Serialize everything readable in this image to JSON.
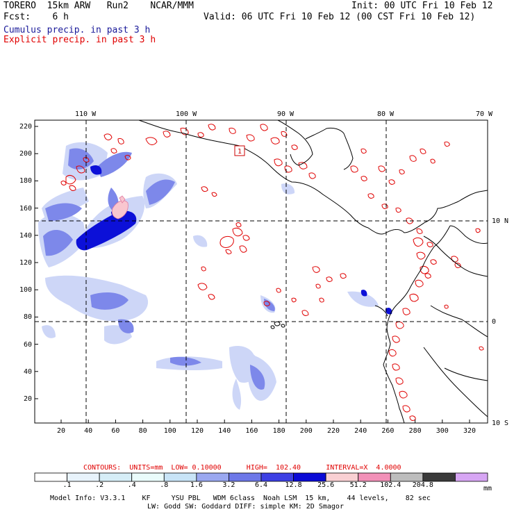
{
  "header": {
    "model": "TORERO  15km ARW   Run2    NCAR/MMM",
    "init": "Init: 00 UTC Fri 10 Feb 12",
    "fcst": "Fcst:    6 h",
    "valid": "Valid: 06 UTC Fri 10 Feb 12 (00 CST Fri 10 Feb 12)",
    "legend_cumulus": "Cumulus precip. in past 3 h",
    "legend_explicit": "Explicit precip. in past 3 h"
  },
  "map": {
    "top_lon_labels": [
      "110 W",
      "100 W",
      "90 W",
      "80 W",
      "70 W"
    ],
    "right_lat_labels": [
      "10 N",
      "0",
      "10 S"
    ],
    "y_grid_labels": [
      "220",
      "200",
      "180",
      "160",
      "140",
      "120",
      "100",
      "80",
      "60",
      "40",
      "20"
    ],
    "x_grid_labels": [
      "20",
      "40",
      "60",
      "80",
      "100",
      "120",
      "140",
      "160",
      "180",
      "200",
      "220",
      "240",
      "260",
      "280",
      "300",
      "320"
    ],
    "marker_label": "1",
    "land_color": "#ffffff",
    "coast_color": "#000000",
    "cumulus_color": "#4b5be0",
    "explicit_color": "#e00000"
  },
  "contours": {
    "text": "CONTOURS:  UNITS=mm  LOW= 0.10000      HIGH=  102.40      INTERVAL=X  4.0000"
  },
  "colorbar": {
    "labels": [
      ".1",
      ".2",
      ".4",
      ".8",
      "1.6",
      "3.2",
      "6.4",
      "12.8",
      "25.6",
      "51.2",
      "102.4",
      "204.8"
    ],
    "unit": "mm",
    "colors": [
      "#ffffff",
      "#e8f3fb",
      "#d6eef7",
      "#eafcfb",
      "#c8e4f7",
      "#9aa8f0",
      "#6d78e8",
      "#3c40e4",
      "#0b0bd6",
      "#f9d0d3",
      "#f291b8",
      "#bdbdbd",
      "#3a3a3a",
      "#d7a6f4"
    ]
  },
  "model_info": {
    "line1": "Model Info: V3.3.1    KF     YSU PBL   WDM 6class  Noah LSM  15 km,    44 levels,    82 sec",
    "line2": "LW: Godd SW: Goddard DIFF: simple KM: 2D Smagor"
  }
}
